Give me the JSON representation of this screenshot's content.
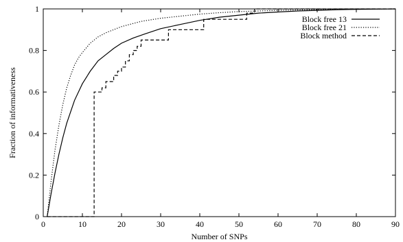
{
  "chart_data": {
    "type": "line",
    "xlabel": "Number of SNPs",
    "ylabel": "Fraction of informativeness",
    "xlim": [
      0,
      90
    ],
    "ylim": [
      0,
      1
    ],
    "x_ticks": [
      0,
      10,
      20,
      30,
      40,
      50,
      60,
      70,
      80,
      90
    ],
    "y_ticks": [
      0,
      0.2,
      0.4,
      0.6,
      0.8,
      1
    ],
    "x_tick_labels": [
      "0",
      "10",
      "20",
      "30",
      "40",
      "50",
      "60",
      "70",
      "80",
      "90"
    ],
    "y_tick_labels": [
      "0",
      "0.2",
      "0.4",
      "0.6",
      "0.8",
      "1"
    ],
    "grid": false,
    "legend_position": "top-right",
    "series": [
      {
        "name": "Block free 13",
        "style": "solid",
        "color": "#000000",
        "x": [
          1,
          2,
          3,
          4,
          5,
          6,
          8,
          10,
          12,
          14,
          16,
          18,
          20,
          23,
          26,
          30,
          35,
          40,
          45,
          50,
          55,
          60,
          65,
          70,
          75,
          80,
          85,
          90
        ],
        "y": [
          0.0,
          0.11,
          0.21,
          0.3,
          0.38,
          0.45,
          0.56,
          0.64,
          0.7,
          0.75,
          0.78,
          0.81,
          0.835,
          0.86,
          0.88,
          0.905,
          0.925,
          0.945,
          0.96,
          0.97,
          0.98,
          0.985,
          0.99,
          0.993,
          0.996,
          0.998,
          0.999,
          1.0
        ]
      },
      {
        "name": "Block free 21",
        "style": "dotted",
        "color": "#000000",
        "x": [
          1,
          2,
          3,
          4,
          5,
          6,
          7,
          8,
          9,
          10,
          12,
          14,
          16,
          18,
          20,
          25,
          30,
          35,
          40,
          45,
          50,
          55,
          60,
          70,
          80,
          90
        ],
        "y": [
          0.0,
          0.17,
          0.32,
          0.44,
          0.54,
          0.62,
          0.68,
          0.73,
          0.765,
          0.79,
          0.835,
          0.865,
          0.885,
          0.9,
          0.915,
          0.94,
          0.955,
          0.965,
          0.975,
          0.982,
          0.987,
          0.99,
          0.993,
          0.997,
          0.999,
          1.0
        ]
      },
      {
        "name": "Block method",
        "style": "dashed",
        "color": "#000000",
        "x": [
          1,
          13,
          13,
          14,
          14,
          15,
          15,
          16,
          16,
          18,
          18,
          19,
          19,
          20,
          20,
          21,
          21,
          22,
          22,
          23,
          23,
          24,
          24,
          25,
          25,
          32,
          32,
          41,
          41,
          52,
          52,
          54,
          54,
          90
        ],
        "y": [
          0,
          0,
          0.6,
          0.6,
          0.6,
          0.6,
          0.62,
          0.62,
          0.65,
          0.65,
          0.68,
          0.68,
          0.7,
          0.7,
          0.72,
          0.72,
          0.75,
          0.75,
          0.78,
          0.78,
          0.8,
          0.8,
          0.82,
          0.82,
          0.85,
          0.85,
          0.9,
          0.9,
          0.95,
          0.95,
          0.98,
          0.98,
          1.0,
          1.0
        ]
      }
    ]
  }
}
